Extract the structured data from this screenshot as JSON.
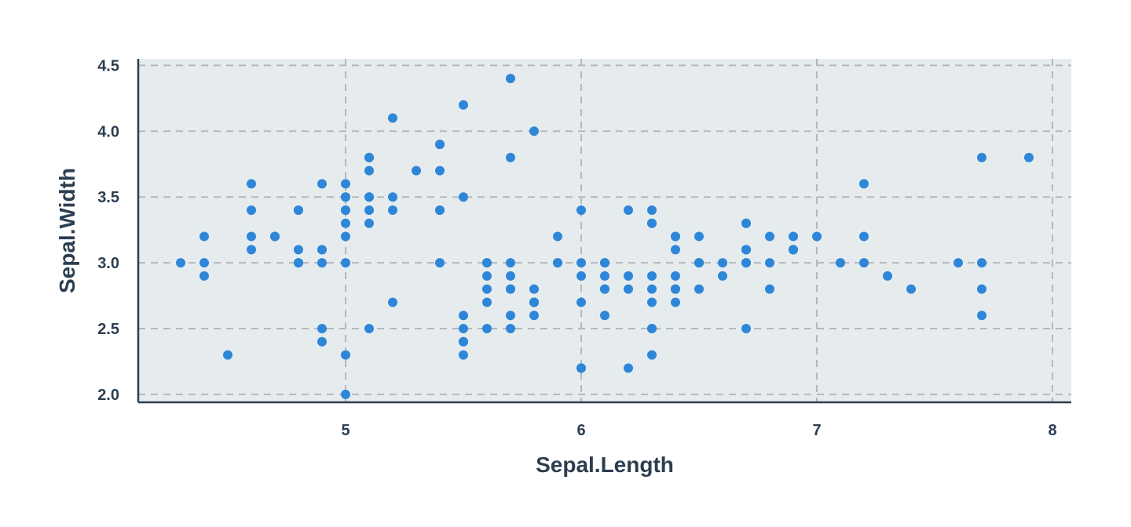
{
  "chart_data": {
    "type": "scatter",
    "title": "",
    "xlabel": "Sepal.Length",
    "ylabel": "Sepal.Width",
    "xlim": [
      4.12,
      8.08
    ],
    "ylim": [
      1.94,
      4.55
    ],
    "x_ticks": [
      5,
      6,
      7,
      8
    ],
    "y_ticks": [
      2.0,
      2.5,
      3.0,
      3.5,
      4.0,
      4.5
    ],
    "x_tick_labels": [
      "5",
      "6",
      "7",
      "8"
    ],
    "y_tick_labels": [
      "2.0",
      "2.5",
      "3.0",
      "3.5",
      "4.0",
      "4.5"
    ],
    "grid": true,
    "legend": "none",
    "colors": {
      "point": "#2e86d9",
      "panel": "#e6ecee",
      "grid": "#b4b8ba",
      "text": "#2c3e50",
      "axis": "#2c3e50"
    },
    "series": [
      {
        "x": [
          5.1,
          4.9,
          4.7,
          4.6,
          5.0,
          5.4,
          4.6,
          5.0,
          4.4,
          4.9,
          5.4,
          4.8,
          4.8,
          4.3,
          5.8,
          5.7,
          5.4,
          5.1,
          5.7,
          5.1,
          5.4,
          5.1,
          4.6,
          5.1,
          4.8,
          5.0,
          5.0,
          5.2,
          5.2,
          4.7,
          4.8,
          5.4,
          5.2,
          5.5,
          4.9,
          5.0,
          5.5,
          4.9,
          4.4,
          5.1,
          5.0,
          4.5,
          4.4,
          5.0,
          5.1,
          4.8,
          5.1,
          4.6,
          5.3,
          5.0,
          7.0,
          6.4,
          6.9,
          5.5,
          6.5,
          5.7,
          6.3,
          4.9,
          6.6,
          5.2,
          5.0,
          5.9,
          6.0,
          6.1,
          5.6,
          6.7,
          5.6,
          5.8,
          6.2,
          5.6,
          5.9,
          6.1,
          6.3,
          6.1,
          6.4,
          6.6,
          6.8,
          6.7,
          6.0,
          5.7,
          5.5,
          5.5,
          5.8,
          6.0,
          5.4,
          6.0,
          6.7,
          6.3,
          5.6,
          5.5,
          5.5,
          6.1,
          5.8,
          5.0,
          5.6,
          5.7,
          5.7,
          6.2,
          5.1,
          5.7,
          6.3,
          5.8,
          7.1,
          6.3,
          6.5,
          7.6,
          4.9,
          7.3,
          6.7,
          7.2,
          6.5,
          6.4,
          6.8,
          5.7,
          5.8,
          6.4,
          6.5,
          7.7,
          7.7,
          6.0,
          6.9,
          5.6,
          7.7,
          6.3,
          6.7,
          7.2,
          6.2,
          6.1,
          6.4,
          7.2,
          7.4,
          7.9,
          6.4,
          6.3,
          6.1,
          7.7,
          6.3,
          6.4,
          6.0,
          6.9,
          6.7,
          6.9,
          5.8,
          6.8,
          6.7,
          6.7,
          6.3,
          6.5,
          6.2,
          5.9
        ],
        "y": [
          3.5,
          3.0,
          3.2,
          3.1,
          3.6,
          3.9,
          3.4,
          3.4,
          2.9,
          3.1,
          3.7,
          3.4,
          3.0,
          3.0,
          4.0,
          4.4,
          3.9,
          3.5,
          3.8,
          3.8,
          3.4,
          3.7,
          3.6,
          3.3,
          3.4,
          3.0,
          3.4,
          3.5,
          3.4,
          3.2,
          3.1,
          3.4,
          4.1,
          4.2,
          3.1,
          3.2,
          3.5,
          3.6,
          3.0,
          3.4,
          3.5,
          2.3,
          3.2,
          3.5,
          3.8,
          3.0,
          3.8,
          3.2,
          3.7,
          3.3,
          3.2,
          3.2,
          3.1,
          2.3,
          2.8,
          2.8,
          3.3,
          2.4,
          2.9,
          2.7,
          2.0,
          3.0,
          2.2,
          2.9,
          2.9,
          3.1,
          3.0,
          2.7,
          2.2,
          2.5,
          3.2,
          2.8,
          2.5,
          2.8,
          2.9,
          3.0,
          2.8,
          3.0,
          2.9,
          2.6,
          2.4,
          2.4,
          2.7,
          2.7,
          3.0,
          3.4,
          3.1,
          2.3,
          3.0,
          2.5,
          2.6,
          3.0,
          2.6,
          2.3,
          2.7,
          3.0,
          2.9,
          2.9,
          2.5,
          2.8,
          3.3,
          2.7,
          3.0,
          2.9,
          3.0,
          3.0,
          2.5,
          2.9,
          2.5,
          3.6,
          3.2,
          2.7,
          3.0,
          2.5,
          2.8,
          3.2,
          3.0,
          3.8,
          2.6,
          2.2,
          3.2,
          2.8,
          2.8,
          2.7,
          3.3,
          3.2,
          2.8,
          3.0,
          2.8,
          3.0,
          2.8,
          3.8,
          2.8,
          2.8,
          2.6,
          3.0,
          3.4,
          3.1,
          3.0,
          3.1,
          3.1,
          3.1,
          2.7,
          3.2,
          3.3,
          3.0,
          2.5,
          3.0,
          3.4,
          3.0
        ]
      }
    ]
  }
}
